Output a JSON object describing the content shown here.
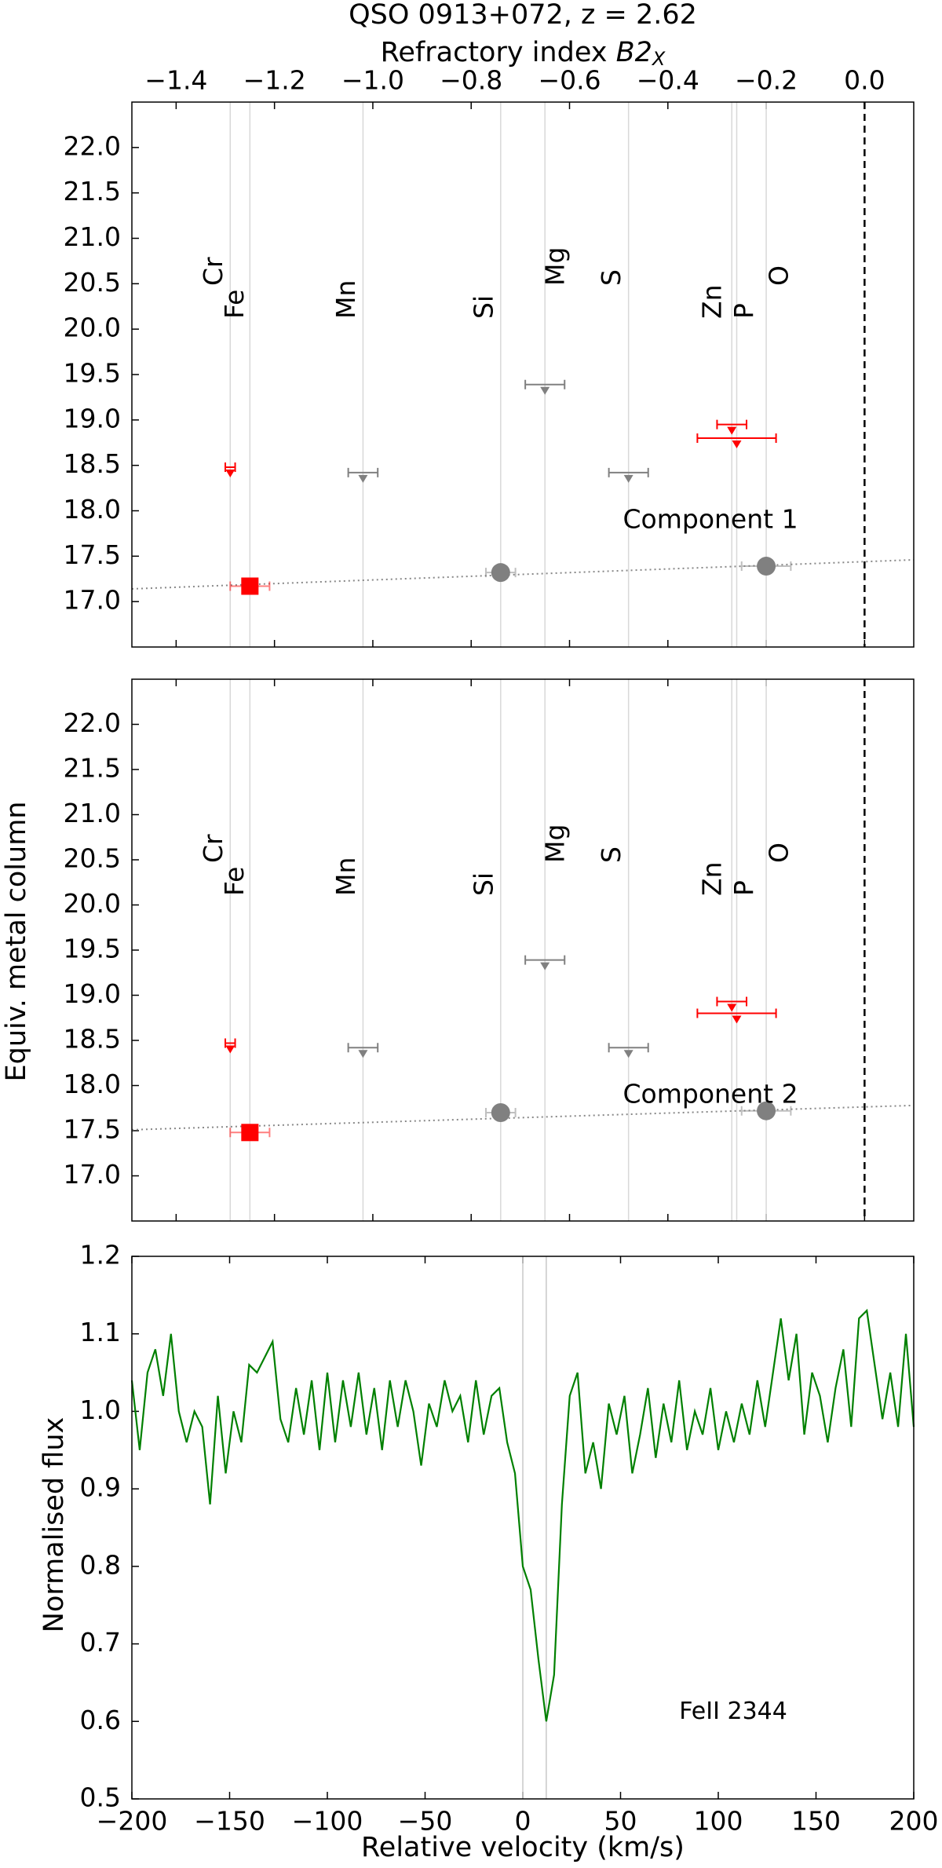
{
  "chart_data": [
    {
      "type": "scatter",
      "title": "QSO 0913+072, z = 2.62",
      "xlabel": "Refractory index ",
      "xlabel_symbol": "B2",
      "xlabel_subscript": "X",
      "xaxis_position": "top",
      "xlim": [
        -1.49,
        0.1
      ],
      "xticks": [
        {
          "value": -1.4,
          "label": "−1.4"
        },
        {
          "value": -1.2,
          "label": "−1.2"
        },
        {
          "value": -1.0,
          "label": "−1.0"
        },
        {
          "value": -0.8,
          "label": "−0.8"
        },
        {
          "value": -0.6,
          "label": "−0.6"
        },
        {
          "value": -0.4,
          "label": "−0.4"
        },
        {
          "value": -0.2,
          "label": "−0.2"
        },
        {
          "value": 0,
          "label": "0.0"
        }
      ],
      "ylim": [
        16.5,
        22.5
      ],
      "yticks": [
        {
          "value": 17,
          "label": "17.0"
        },
        17.5,
        {
          "value": 18,
          "label": "18.0"
        },
        18.5,
        {
          "value": 19,
          "label": "19.0"
        },
        19.5,
        {
          "value": 20,
          "label": "20.0"
        },
        20.5,
        {
          "value": 21,
          "label": "21.0"
        },
        21.5,
        {
          "value": 22,
          "label": "22.0"
        }
      ],
      "vline": 0,
      "elements": [
        {
          "name": "Cr",
          "x": -1.29,
          "color": "#ff0000"
        },
        {
          "name": "Fe",
          "x": -1.25,
          "color": "#ff0000"
        },
        {
          "name": "Mn",
          "x": -1.02,
          "color": "#808080"
        },
        {
          "name": "Si",
          "x": -0.74,
          "color": "#808080"
        },
        {
          "name": "Mg",
          "x": -0.65,
          "color": "#808080"
        },
        {
          "name": "S",
          "x": -0.48,
          "color": "#808080"
        },
        {
          "name": "Zn",
          "x": -0.27,
          "color": "#ff0000"
        },
        {
          "name": "P",
          "x": -0.26,
          "color": "#ff0000"
        },
        {
          "name": "O",
          "x": -0.2,
          "color": "#808080"
        }
      ],
      "values": [
        18.48,
        17.17,
        18.42,
        17.32,
        19.39,
        18.42,
        18.95,
        18.8,
        17.39
      ],
      "markers": [
        "v",
        "s",
        "v",
        "o",
        "v",
        "v",
        "v",
        "v",
        "o"
      ],
      "xerr": [
        0.01,
        0.04,
        0.03,
        0.03,
        0.04,
        0.04,
        0.03,
        0.08,
        0.05
      ],
      "fit": {
        "x": [
          -1.49,
          0.1
        ],
        "y": [
          17.14,
          17.46
        ]
      },
      "annotation": "Component 1"
    },
    {
      "type": "scatter",
      "ylabel": "Equiv. metal column",
      "xlim": [
        -1.49,
        0.1
      ],
      "ylim": [
        16.5,
        22.5
      ],
      "yticks": [
        {
          "value": 17,
          "label": "17.0"
        },
        17.5,
        {
          "value": 18,
          "label": "18.0"
        },
        18.5,
        {
          "value": 19,
          "label": "19.0"
        },
        19.5,
        {
          "value": 20,
          "label": "20.0"
        },
        20.5,
        {
          "value": 21,
          "label": "21.0"
        },
        21.5,
        {
          "value": 22,
          "label": "22.0"
        }
      ],
      "vline": 0,
      "elements": [
        {
          "name": "Cr",
          "x": -1.29,
          "color": "#ff0000"
        },
        {
          "name": "Fe",
          "x": -1.25,
          "color": "#ff0000"
        },
        {
          "name": "Mn",
          "x": -1.02,
          "color": "#808080"
        },
        {
          "name": "Si",
          "x": -0.74,
          "color": "#808080"
        },
        {
          "name": "Mg",
          "x": -0.65,
          "color": "#808080"
        },
        {
          "name": "S",
          "x": -0.48,
          "color": "#808080"
        },
        {
          "name": "Zn",
          "x": -0.27,
          "color": "#ff0000"
        },
        {
          "name": "P",
          "x": -0.26,
          "color": "#ff0000"
        },
        {
          "name": "O",
          "x": -0.2,
          "color": "#808080"
        }
      ],
      "values": [
        18.47,
        17.48,
        18.42,
        17.7,
        19.39,
        18.42,
        18.93,
        18.8,
        17.72
      ],
      "markers": [
        "v",
        "s",
        "v",
        "o",
        "v",
        "v",
        "v",
        "v",
        "o"
      ],
      "xerr": [
        0.01,
        0.04,
        0.03,
        0.03,
        0.04,
        0.04,
        0.03,
        0.08,
        0.05
      ],
      "fit": {
        "x": [
          -1.49,
          0.1
        ],
        "y": [
          17.51,
          17.78
        ]
      },
      "annotation": "Component 2"
    },
    {
      "type": "line",
      "xlabel": "Relative velocity (km/s)",
      "ylabel": "Normalised flux",
      "xaxis_position": "bottom",
      "xlim": [
        -200,
        200
      ],
      "xticks": [
        {
          "value": -200,
          "label": "−200"
        },
        {
          "value": -150,
          "label": "−150"
        },
        {
          "value": -100,
          "label": "−100"
        },
        {
          "value": -50,
          "label": "−50"
        },
        0,
        50,
        100,
        150,
        200
      ],
      "ylim": [
        0.5,
        1.2
      ],
      "yticks": [
        0.5,
        0.6,
        0.7,
        0.8,
        0.9,
        {
          "value": 1,
          "label": "1.0"
        },
        1.1,
        1.2
      ],
      "vlines": [
        0,
        12
      ],
      "color": "#008000",
      "annotation": "FeII 2344",
      "x": [
        -200,
        -196,
        -192,
        -188,
        -184,
        -180,
        -176,
        -172,
        -168,
        -164,
        -160,
        -156,
        -152,
        -148,
        -144,
        -140,
        -136,
        -132,
        -128,
        -124,
        -120,
        -116,
        -112,
        -108,
        -104,
        -100,
        -96,
        -92,
        -88,
        -84,
        -80,
        -76,
        -72,
        -68,
        -64,
        -60,
        -56,
        -52,
        -48,
        -44,
        -40,
        -36,
        -32,
        -28,
        -24,
        -20,
        -16,
        -12,
        -8,
        -4,
        0,
        4,
        8,
        12,
        16,
        20,
        24,
        28,
        32,
        36,
        40,
        44,
        48,
        52,
        56,
        60,
        64,
        68,
        72,
        76,
        80,
        84,
        88,
        92,
        96,
        100,
        104,
        108,
        112,
        116,
        120,
        124,
        128,
        132,
        136,
        140,
        144,
        148,
        152,
        156,
        160,
        164,
        168,
        172,
        176,
        180,
        184,
        188,
        192,
        196,
        200
      ],
      "values": [
        1.04,
        0.95,
        1.05,
        1.08,
        1.02,
        1.1,
        1.0,
        0.96,
        1.0,
        0.98,
        0.88,
        1.02,
        0.92,
        1.0,
        0.96,
        1.06,
        1.05,
        1.07,
        1.09,
        0.99,
        0.96,
        1.03,
        0.97,
        1.04,
        0.95,
        1.05,
        0.96,
        1.04,
        0.98,
        1.05,
        0.97,
        1.03,
        0.95,
        1.04,
        0.98,
        1.04,
        1.0,
        0.93,
        1.01,
        0.98,
        1.04,
        1.0,
        1.02,
        0.96,
        1.04,
        0.97,
        1.02,
        1.03,
        0.96,
        0.92,
        0.8,
        0.77,
        0.68,
        0.6,
        0.66,
        0.88,
        1.02,
        1.05,
        0.92,
        0.96,
        0.9,
        1.01,
        0.97,
        1.02,
        0.92,
        0.97,
        1.03,
        0.94,
        1.01,
        0.96,
        1.04,
        0.95,
        1.0,
        0.97,
        1.03,
        0.95,
        1.0,
        0.96,
        1.01,
        0.97,
        1.04,
        0.98,
        1.05,
        1.12,
        1.04,
        1.1,
        0.97,
        1.05,
        1.02,
        0.96,
        1.03,
        1.08,
        0.98,
        1.12,
        1.13,
        1.06,
        0.99,
        1.05,
        0.98,
        1.1,
        0.98
      ]
    }
  ]
}
